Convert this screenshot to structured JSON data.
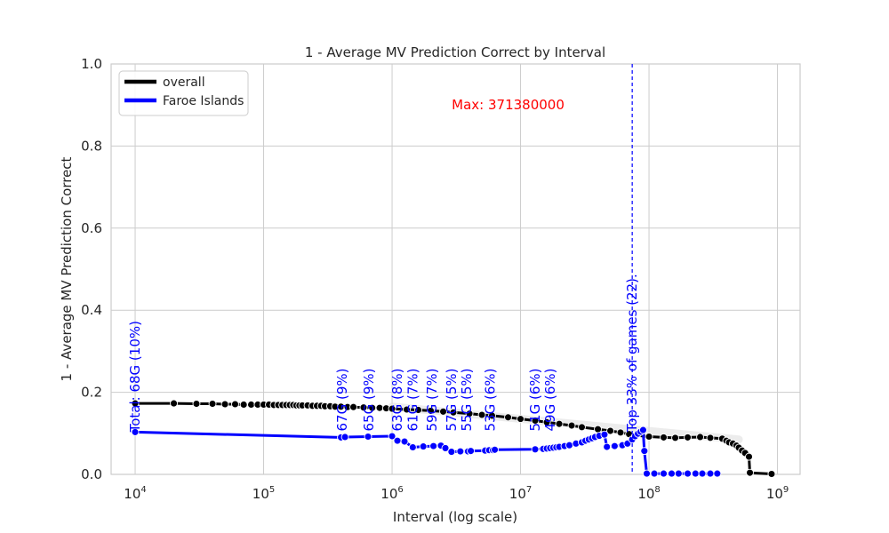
{
  "chart_data": {
    "type": "line",
    "title": "1 - Average MV Prediction Correct by Interval",
    "xlabel": "Interval (log scale)",
    "ylabel": "1 - Average MV Prediction Correct",
    "x_scale": "log",
    "xlim": [
      6500,
      1500000000
    ],
    "ylim": [
      0,
      1
    ],
    "x_ticks": [
      10000,
      100000,
      1000000,
      10000000,
      100000000,
      1000000000
    ],
    "x_tick_labels": [
      {
        "base": "10",
        "exp": "4"
      },
      {
        "base": "10",
        "exp": "5"
      },
      {
        "base": "10",
        "exp": "6"
      },
      {
        "base": "10",
        "exp": "7"
      },
      {
        "base": "10",
        "exp": "8"
      },
      {
        "base": "10",
        "exp": "9"
      }
    ],
    "y_ticks": [
      0,
      0.2,
      0.4,
      0.6,
      0.8,
      1.0
    ],
    "y_tick_labels": [
      "0.0",
      "0.2",
      "0.4",
      "0.6",
      "0.8",
      "1.0"
    ],
    "grid": true,
    "legend": "top-left",
    "series": [
      {
        "name": "overall",
        "color": "#000000",
        "points": [
          [
            10000,
            0.173
          ],
          [
            20000,
            0.173
          ],
          [
            30000,
            0.172
          ],
          [
            40000,
            0.172
          ],
          [
            50000,
            0.171
          ],
          [
            60000,
            0.171
          ],
          [
            70000,
            0.17
          ],
          [
            80000,
            0.17
          ],
          [
            90000,
            0.17
          ],
          [
            100000,
            0.17
          ],
          [
            110000,
            0.17
          ],
          [
            120000,
            0.169
          ],
          [
            130000,
            0.169
          ],
          [
            140000,
            0.169
          ],
          [
            150000,
            0.169
          ],
          [
            160000,
            0.169
          ],
          [
            170000,
            0.169
          ],
          [
            180000,
            0.168
          ],
          [
            190000,
            0.168
          ],
          [
            200000,
            0.168
          ],
          [
            220000,
            0.168
          ],
          [
            240000,
            0.167
          ],
          [
            260000,
            0.167
          ],
          [
            280000,
            0.167
          ],
          [
            300000,
            0.166
          ],
          [
            330000,
            0.166
          ],
          [
            360000,
            0.165
          ],
          [
            400000,
            0.165
          ],
          [
            450000,
            0.164
          ],
          [
            500000,
            0.164
          ],
          [
            600000,
            0.163
          ],
          [
            700000,
            0.162
          ],
          [
            800000,
            0.162
          ],
          [
            900000,
            0.161
          ],
          [
            1000000,
            0.16
          ],
          [
            1300000,
            0.158
          ],
          [
            1600000,
            0.157
          ],
          [
            2000000,
            0.155
          ],
          [
            2500000,
            0.153
          ],
          [
            3000000,
            0.151
          ],
          [
            4000000,
            0.148
          ],
          [
            5000000,
            0.145
          ],
          [
            6000000,
            0.143
          ],
          [
            8000000,
            0.139
          ],
          [
            10000000,
            0.135
          ],
          [
            13000000,
            0.131
          ],
          [
            16000000,
            0.127
          ],
          [
            20000000,
            0.123
          ],
          [
            25000000,
            0.119
          ],
          [
            30000000,
            0.115
          ],
          [
            40000000,
            0.11
          ],
          [
            50000000,
            0.106
          ],
          [
            60000000,
            0.102
          ],
          [
            70000000,
            0.098
          ],
          [
            80000000,
            0.095
          ],
          [
            100000000,
            0.092
          ],
          [
            130000000,
            0.09
          ],
          [
            160000000,
            0.089
          ],
          [
            200000000,
            0.09
          ],
          [
            250000000,
            0.091
          ],
          [
            300000000,
            0.089
          ],
          [
            371380000,
            0.087
          ],
          [
            400000000,
            0.082
          ],
          [
            420000000,
            0.078
          ],
          [
            450000000,
            0.075
          ],
          [
            480000000,
            0.07
          ],
          [
            500000000,
            0.065
          ],
          [
            530000000,
            0.058
          ],
          [
            560000000,
            0.052
          ],
          [
            600000000,
            0.043
          ],
          [
            610000000,
            0.004
          ],
          [
            900000000,
            0.001
          ]
        ]
      },
      {
        "name": "Faroe Islands",
        "color": "#0000ff",
        "points": [
          [
            10000,
            0.103
          ],
          [
            400000,
            0.09
          ],
          [
            430000,
            0.091
          ],
          [
            650000,
            0.092
          ],
          [
            1000000,
            0.093
          ],
          [
            1100000,
            0.082
          ],
          [
            1250000,
            0.08
          ],
          [
            1450000,
            0.066
          ],
          [
            1750000,
            0.068
          ],
          [
            2100000,
            0.069
          ],
          [
            2400000,
            0.07
          ],
          [
            2600000,
            0.064
          ],
          [
            2900000,
            0.055
          ],
          [
            3400000,
            0.056
          ],
          [
            3900000,
            0.056
          ],
          [
            4100000,
            0.057
          ],
          [
            5300000,
            0.058
          ],
          [
            5700000,
            0.059
          ],
          [
            6100000,
            0.059
          ],
          [
            6300000,
            0.06
          ],
          [
            13000000,
            0.061
          ],
          [
            15000000,
            0.062
          ],
          [
            16000000,
            0.063
          ],
          [
            17000000,
            0.064
          ],
          [
            18000000,
            0.065
          ],
          [
            19000000,
            0.066
          ],
          [
            20000000,
            0.067
          ],
          [
            22000000,
            0.069
          ],
          [
            24000000,
            0.071
          ],
          [
            27000000,
            0.075
          ],
          [
            30000000,
            0.078
          ],
          [
            32000000,
            0.082
          ],
          [
            34000000,
            0.085
          ],
          [
            36000000,
            0.088
          ],
          [
            38000000,
            0.091
          ],
          [
            41000000,
            0.094
          ],
          [
            45000000,
            0.097
          ],
          [
            47000000,
            0.067
          ],
          [
            54000000,
            0.069
          ],
          [
            62000000,
            0.071
          ],
          [
            68000000,
            0.075
          ],
          [
            74000000,
            0.085
          ],
          [
            78000000,
            0.093
          ],
          [
            82000000,
            0.099
          ],
          [
            86000000,
            0.104
          ],
          [
            90000000,
            0.108
          ],
          [
            92000000,
            0.057
          ],
          [
            96000000,
            0.002
          ],
          [
            110000000,
            0.002
          ],
          [
            130000000,
            0.002
          ],
          [
            150000000,
            0.002
          ],
          [
            170000000,
            0.002
          ],
          [
            200000000,
            0.002
          ],
          [
            230000000,
            0.002
          ],
          [
            260000000,
            0.002
          ],
          [
            300000000,
            0.002
          ],
          [
            340000000,
            0.002
          ]
        ]
      }
    ],
    "overall_haze": {
      "color": "#dddddd",
      "from": [
        1000000,
        0.165
      ],
      "to": [
        500000000,
        0.085
      ]
    },
    "annotations": [
      {
        "text": "Total: 68G (10%)",
        "x": 10000,
        "y": 0.103
      },
      {
        "text": "67G (9%)",
        "x": 410000,
        "y": 0.105
      },
      {
        "text": "65G (9%)",
        "x": 660000,
        "y": 0.105
      },
      {
        "text": "63G (8%)",
        "x": 1100000,
        "y": 0.105
      },
      {
        "text": "61G (7%)",
        "x": 1450000,
        "y": 0.105
      },
      {
        "text": "59G (7%)",
        "x": 2050000,
        "y": 0.105
      },
      {
        "text": "57G (5%)",
        "x": 2900000,
        "y": 0.105
      },
      {
        "text": "55G (5%)",
        "x": 3800000,
        "y": 0.105
      },
      {
        "text": "53G (6%)",
        "x": 5800000,
        "y": 0.105
      },
      {
        "text": "51G (6%)",
        "x": 13000000,
        "y": 0.105
      },
      {
        "text": "49G (6%)",
        "x": 17000000,
        "y": 0.105
      },
      {
        "text": "Top 33% of games (22).",
        "x": 74000000,
        "y": 0.103
      }
    ],
    "vline": {
      "x": 74000000,
      "color": "#0000ff"
    },
    "max_label": {
      "text": "Max: 371380000",
      "x": 8000000,
      "y": 0.9,
      "color": "#ff0000"
    }
  }
}
